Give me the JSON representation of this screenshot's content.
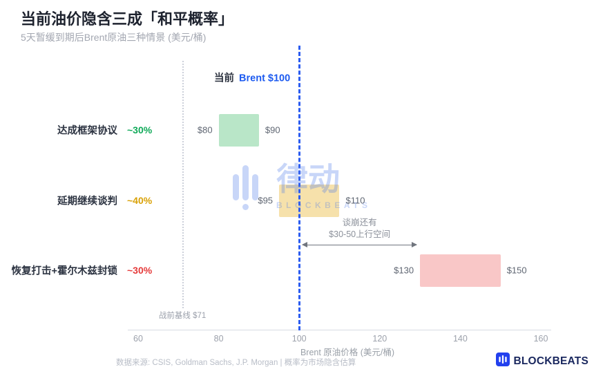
{
  "header": {
    "title": "当前油价隐含三成「和平概率」",
    "subtitle": "5天暂缓到期后Brent原油三种情景 (美元/桶)"
  },
  "current_label": {
    "prefix": "当前",
    "value": "Brent $100"
  },
  "annotation": {
    "line1": "谈崩还有",
    "line2": "$30-50上行空间"
  },
  "axis": {
    "title": "Brent 原油价格 (美元/桶)"
  },
  "footer": {
    "source": "数据来源: CSIS, Goldman Sachs, J.P. Morgan | 概率为市场隐含估算"
  },
  "logo": {
    "text": "BLOCKBEATS"
  },
  "watermark": {
    "cn": "律动",
    "en": "BLOCKBEATS"
  },
  "colors": {
    "current_line": "#2b5cf0",
    "baseline_line": "#ccd0da",
    "title_text": "#1d222e",
    "axis_text": "#9ca1ab"
  },
  "chart_data": {
    "type": "bar",
    "orientation": "horizontal-range",
    "title": "当前油价隐含三成「和平概率」",
    "subtitle": "5天暂缓到期后Brent原油三种情景 (美元/桶)",
    "xlabel": "Brent 原油价格 (美元/桶)",
    "xlim": [
      57,
      163
    ],
    "xticks": [
      60,
      80,
      100,
      120,
      140,
      160
    ],
    "xtick_labels": [
      "60",
      "80",
      "100",
      "120",
      "140",
      "160"
    ],
    "grid": false,
    "legend": false,
    "scenarios": [
      {
        "label": "达成框架协议",
        "probability": "~30%",
        "range": [
          80,
          90
        ],
        "min_label": "$80",
        "max_label": "$90",
        "bar_color": "#b9e6c8",
        "prob_color": "#0fa958"
      },
      {
        "label": "延期继续谈判",
        "probability": "~40%",
        "range": [
          95,
          110
        ],
        "min_label": "$95",
        "max_label": "$110",
        "bar_color": "#f6e1ab",
        "prob_color": "#d9a106"
      },
      {
        "label": "恢复打击+霍尔木兹封锁",
        "probability": "~30%",
        "range": [
          130,
          150
        ],
        "min_label": "$130",
        "max_label": "$150",
        "bar_color": "#f9c7c7",
        "prob_color": "#e53a3a"
      }
    ],
    "reference_lines": [
      {
        "label": "当前 Brent $100",
        "value": 100,
        "style": "dashed",
        "color": "#2b5cf0"
      },
      {
        "label": "战前基线 $71",
        "value": 71,
        "style": "dotted",
        "color": "#ccd0da"
      }
    ],
    "annotation": {
      "text": "谈崩还有 $30-50上行空间",
      "arrow_from": 100,
      "arrow_to": 130
    }
  }
}
